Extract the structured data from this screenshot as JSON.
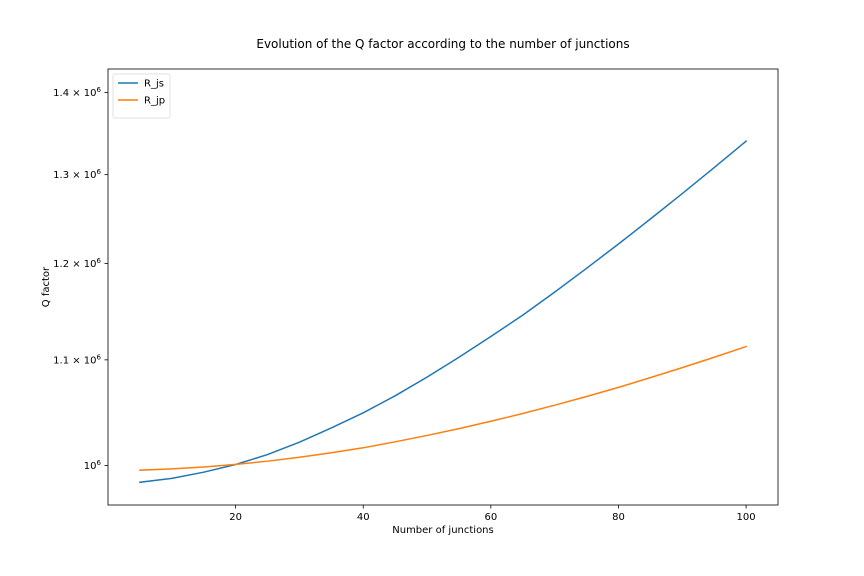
{
  "chart_data": {
    "type": "line",
    "title": "Evolution of the Q factor according to the number of junctions",
    "xlabel": "Number of junctions",
    "ylabel": "Q factor",
    "xlim": [
      0.0,
      105.0
    ],
    "ylim": [
      965000,
      1430000
    ],
    "yscale": "log",
    "grid": false,
    "legend_position": "upper-left",
    "x_ticks": [
      {
        "value": 20,
        "label": "20"
      },
      {
        "value": 40,
        "label": "40"
      },
      {
        "value": 60,
        "label": "60"
      },
      {
        "value": 80,
        "label": "80"
      },
      {
        "value": 100,
        "label": "100"
      }
    ],
    "y_ticks": [
      {
        "value": 1000000,
        "mantissa": "",
        "base": "10",
        "exponent": "6"
      },
      {
        "value": 1100000,
        "mantissa": "1.1",
        "base": "10",
        "exponent": "6"
      },
      {
        "value": 1200000,
        "mantissa": "1.2",
        "base": "10",
        "exponent": "6"
      },
      {
        "value": 1300000,
        "mantissa": "1.3",
        "base": "10",
        "exponent": "6"
      },
      {
        "value": 1400000,
        "mantissa": "1.4",
        "base": "10",
        "exponent": "6"
      }
    ],
    "x": [
      5,
      10,
      15,
      20,
      25,
      30,
      35,
      40,
      45,
      50,
      55,
      60,
      65,
      70,
      75,
      80,
      85,
      90,
      95,
      100
    ],
    "series": [
      {
        "name": "R_js",
        "color": "#1f77b4",
        "values": [
          985000,
          988500,
          994000,
          1000900,
          1009900,
          1021300,
          1034500,
          1048700,
          1064900,
          1083000,
          1102600,
          1123400,
          1145300,
          1169300,
          1194700,
          1221200,
          1249000,
          1278000,
          1308300,
          1339900
        ]
      },
      {
        "name": "R_jp",
        "color": "#ff7f0e",
        "values": [
          995800,
          997000,
          998700,
          1001000,
          1003900,
          1007500,
          1011600,
          1016100,
          1021600,
          1027500,
          1033800,
          1040700,
          1048000,
          1055900,
          1064200,
          1073000,
          1082500,
          1092300,
          1102600,
          1113300
        ]
      }
    ]
  }
}
